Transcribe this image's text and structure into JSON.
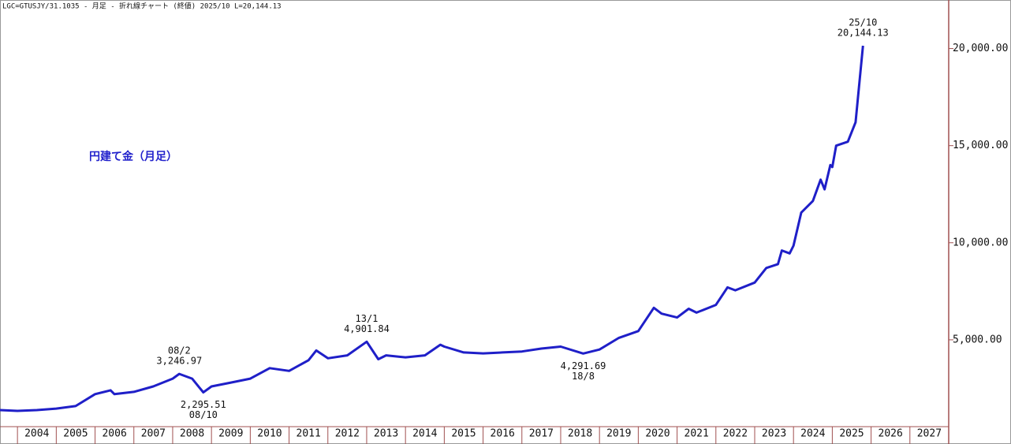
{
  "chart_data": {
    "type": "line",
    "title": "LGC=GTUSJY/31.1035 - 月足 - 折れ線チャート (終値)  2025/10 L=20,144.13",
    "note": "円建て金（月足）",
    "xlim": [
      2003.55,
      2028.0
    ],
    "xticks": [
      {
        "value": 2004,
        "label": "2004"
      },
      {
        "value": 2005,
        "label": "2005"
      },
      {
        "value": 2006,
        "label": "2006"
      },
      {
        "value": 2007,
        "label": "2007"
      },
      {
        "value": 2008,
        "label": "2008"
      },
      {
        "value": 2009,
        "label": "2009"
      },
      {
        "value": 2010,
        "label": "2010"
      },
      {
        "value": 2011,
        "label": "2011"
      },
      {
        "value": 2012,
        "label": "2012"
      },
      {
        "value": 2013,
        "label": "2013"
      },
      {
        "value": 2014,
        "label": "2014"
      },
      {
        "value": 2015,
        "label": "2015"
      },
      {
        "value": 2016,
        "label": "2016"
      },
      {
        "value": 2017,
        "label": "2017"
      },
      {
        "value": 2018,
        "label": "2018"
      },
      {
        "value": 2019,
        "label": "2019"
      },
      {
        "value": 2020,
        "label": "2020"
      },
      {
        "value": 2021,
        "label": "2021"
      },
      {
        "value": 2022,
        "label": "2022"
      },
      {
        "value": 2023,
        "label": "2023"
      },
      {
        "value": 2024,
        "label": "2024"
      },
      {
        "value": 2025,
        "label": "2025"
      },
      {
        "value": 2026,
        "label": "2026"
      },
      {
        "value": 2027,
        "label": "2027"
      }
    ],
    "ylim": [
      500,
      22500
    ],
    "yticks": [
      {
        "value": 5000,
        "label": "5,000.00"
      },
      {
        "value": 10000,
        "label": "10,000.00"
      },
      {
        "value": 15000,
        "label": "15,000.00"
      },
      {
        "value": 20000,
        "label": "20,000.00"
      }
    ],
    "series": [
      {
        "color": "#1f1fc8",
        "x": [
          2003.55,
          2004.0,
          2004.5,
          2005.0,
          2005.5,
          2006.0,
          2006.4,
          2006.5,
          2007.0,
          2007.5,
          2008.0,
          2008.17,
          2008.5,
          2008.79,
          2009.0,
          2009.5,
          2010.0,
          2010.5,
          2011.0,
          2011.5,
          2011.7,
          2012.0,
          2012.5,
          2013.0,
          2013.3,
          2013.5,
          2014.0,
          2014.5,
          2014.9,
          2015.0,
          2015.5,
          2016.0,
          2016.5,
          2017.0,
          2017.5,
          2018.0,
          2018.58,
          2019.0,
          2019.5,
          2020.0,
          2020.4,
          2020.6,
          2021.0,
          2021.3,
          2021.5,
          2022.0,
          2022.3,
          2022.5,
          2023.0,
          2023.3,
          2023.6,
          2023.7,
          2023.9,
          2024.0,
          2024.2,
          2024.5,
          2024.7,
          2024.8,
          2024.95,
          2025.0,
          2025.1,
          2025.4,
          2025.6,
          2025.79
        ],
        "values": [
          1380,
          1340,
          1380,
          1460,
          1590,
          2200,
          2400,
          2200,
          2320,
          2600,
          3000,
          3246.97,
          3000,
          2295.51,
          2600,
          2800,
          3000,
          3540,
          3400,
          3950,
          4450,
          4050,
          4200,
          4901.84,
          4000,
          4200,
          4100,
          4200,
          4750,
          4650,
          4350,
          4300,
          4350,
          4400,
          4550,
          4650,
          4291.69,
          4500,
          5100,
          5450,
          6650,
          6350,
          6150,
          6600,
          6400,
          6800,
          7700,
          7550,
          7950,
          8700,
          8900,
          9600,
          9450,
          9850,
          11550,
          12150,
          13250,
          12750,
          14000,
          13900,
          15000,
          15200,
          16200,
          20144.13
        ]
      }
    ],
    "annotations": [
      {
        "date": "08/2",
        "value": 3246.97,
        "value_label": "3,246.97"
      },
      {
        "date": "08/10",
        "value": 2295.51,
        "value_label": "2,295.51"
      },
      {
        "date": "13/1",
        "value": 4901.84,
        "value_label": "4,901.84"
      },
      {
        "date": "18/8",
        "value": 4291.69,
        "value_label": "4,291.69"
      },
      {
        "date": "25/10",
        "value": 20144.13,
        "value_label": "20,144.13"
      }
    ]
  }
}
